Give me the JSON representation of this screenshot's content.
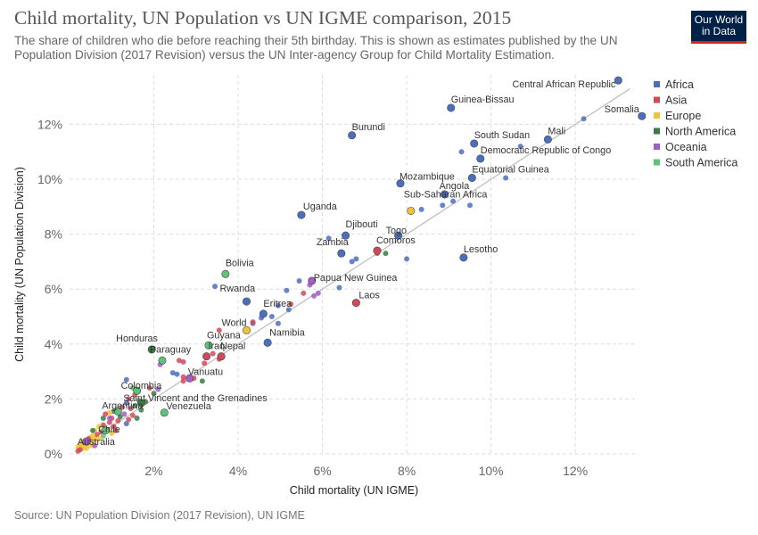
{
  "title": "Child mortality, UN Population vs UN IGME comparison, 2015",
  "subtitle": "The share of children who die before reaching their 5th birthday. This is shown as estimates published by the UN Population Division (2017 Revision) versus the UN Inter-agency Group for Child Mortality Estimation.",
  "logo": {
    "line1": "Our World",
    "line2": "in Data",
    "bg_color": "#002147",
    "accent_color": "#ce261e"
  },
  "source": "Source: UN Population Division (2017 Revision), UN IGME",
  "chart_data": {
    "type": "scatter",
    "xlabel": "Child mortality (UN IGME)",
    "ylabel": "Child mortality (UN Population Division)",
    "xlim": [
      0,
      13.5
    ],
    "ylim": [
      0,
      13.8
    ],
    "x_ticks": [
      2,
      4,
      6,
      8,
      10,
      12
    ],
    "y_ticks": [
      0,
      2,
      4,
      6,
      8,
      10,
      12
    ],
    "tick_format": "percent",
    "grid": true,
    "reference_line": "y = x",
    "legend_position": "right",
    "legend": [
      {
        "name": "Africa",
        "color": "#4c6ebf"
      },
      {
        "name": "Asia",
        "color": "#d04a5b"
      },
      {
        "name": "Europe",
        "color": "#f0c33b"
      },
      {
        "name": "North America",
        "color": "#3c7a45"
      },
      {
        "name": "Oceania",
        "color": "#a05ec8"
      },
      {
        "name": "South America",
        "color": "#5fc27a"
      }
    ],
    "labeled_points": [
      {
        "name": "Central African Republic",
        "x": 13.02,
        "y": 13.6,
        "region": "Africa"
      },
      {
        "name": "Guinea-Bissau",
        "x": 9.05,
        "y": 12.6,
        "region": "Africa"
      },
      {
        "name": "Somalia",
        "x": 13.58,
        "y": 12.3,
        "region": "Africa"
      },
      {
        "name": "Burundi",
        "x": 6.7,
        "y": 11.6,
        "region": "Africa"
      },
      {
        "name": "South Sudan",
        "x": 9.6,
        "y": 11.3,
        "region": "Africa"
      },
      {
        "name": "Mali",
        "x": 11.35,
        "y": 11.45,
        "region": "Africa"
      },
      {
        "name": "Democratic Republic of Congo",
        "x": 9.75,
        "y": 10.75,
        "region": "Africa"
      },
      {
        "name": "Equatorial Guinea",
        "x": 9.55,
        "y": 10.05,
        "region": "Africa"
      },
      {
        "name": "Mozambique",
        "x": 7.85,
        "y": 9.85,
        "region": "Africa"
      },
      {
        "name": "Angola",
        "x": 8.9,
        "y": 9.45,
        "region": "Africa"
      },
      {
        "name": "Sub-Saharan Africa",
        "x": 8.1,
        "y": 8.85,
        "region": "Europe"
      },
      {
        "name": "Uganda",
        "x": 5.5,
        "y": 8.7,
        "region": "Africa"
      },
      {
        "name": "Djibouti",
        "x": 6.55,
        "y": 7.95,
        "region": "Africa"
      },
      {
        "name": "Togo",
        "x": 7.8,
        "y": 7.95,
        "region": "Africa"
      },
      {
        "name": "Zambia",
        "x": 6.45,
        "y": 7.3,
        "region": "Africa"
      },
      {
        "name": "Comoros",
        "x": 7.3,
        "y": 7.4,
        "region": "Asia"
      },
      {
        "name": "Lesotho",
        "x": 9.35,
        "y": 7.15,
        "region": "Africa"
      },
      {
        "name": "Bolivia",
        "x": 3.7,
        "y": 6.55,
        "region": "South America"
      },
      {
        "name": "Papua New Guinea",
        "x": 5.75,
        "y": 6.3,
        "region": "Oceania"
      },
      {
        "name": "Rwanda",
        "x": 4.2,
        "y": 5.55,
        "region": "Africa"
      },
      {
        "name": "Laos",
        "x": 6.8,
        "y": 5.5,
        "region": "Asia"
      },
      {
        "name": "Eritrea",
        "x": 4.6,
        "y": 5.1,
        "region": "Africa"
      },
      {
        "name": "World",
        "x": 4.2,
        "y": 4.5,
        "region": "Europe"
      },
      {
        "name": "Namibia",
        "x": 4.7,
        "y": 4.05,
        "region": "Africa"
      },
      {
        "name": "Guyana",
        "x": 3.3,
        "y": 3.95,
        "region": "South America"
      },
      {
        "name": "Honduras",
        "x": 1.95,
        "y": 3.8,
        "region": "North America"
      },
      {
        "name": "Iraq",
        "x": 3.25,
        "y": 3.55,
        "region": "Asia"
      },
      {
        "name": "Nepal",
        "x": 3.6,
        "y": 3.55,
        "region": "Asia"
      },
      {
        "name": "Paraguay",
        "x": 2.2,
        "y": 3.4,
        "region": "South America"
      },
      {
        "name": "Vanuatu",
        "x": 2.85,
        "y": 2.75,
        "region": "Oceania"
      },
      {
        "name": "Colombia",
        "x": 1.6,
        "y": 2.3,
        "region": "South America"
      },
      {
        "name": "Saint Vincent and the Grenadines",
        "x": 1.7,
        "y": 1.85,
        "region": "North America"
      },
      {
        "name": "Argentina",
        "x": 1.15,
        "y": 1.55,
        "region": "South America"
      },
      {
        "name": "Venezuela",
        "x": 2.25,
        "y": 1.5,
        "region": "South America"
      },
      {
        "name": "Chile",
        "x": 0.85,
        "y": 0.85,
        "region": "South America"
      },
      {
        "name": "Australia",
        "x": 0.4,
        "y": 0.45,
        "region": "Oceania"
      }
    ],
    "other_points": [
      {
        "x": 12.2,
        "y": 12.2,
        "region": "Africa"
      },
      {
        "x": 10.7,
        "y": 11.2,
        "region": "Africa"
      },
      {
        "x": 9.3,
        "y": 11.0,
        "region": "Africa"
      },
      {
        "x": 10.35,
        "y": 10.05,
        "region": "Africa"
      },
      {
        "x": 9.1,
        "y": 9.2,
        "region": "Africa"
      },
      {
        "x": 8.85,
        "y": 9.05,
        "region": "Africa"
      },
      {
        "x": 9.5,
        "y": 9.05,
        "region": "Africa"
      },
      {
        "x": 8.35,
        "y": 8.9,
        "region": "Africa"
      },
      {
        "x": 6.15,
        "y": 7.85,
        "region": "Africa"
      },
      {
        "x": 6.7,
        "y": 7.0,
        "region": "Africa"
      },
      {
        "x": 6.8,
        "y": 7.1,
        "region": "Africa"
      },
      {
        "x": 8.0,
        "y": 7.1,
        "region": "Africa"
      },
      {
        "x": 7.5,
        "y": 7.3,
        "region": "North America"
      },
      {
        "x": 7.3,
        "y": 7.3,
        "region": "Asia"
      },
      {
        "x": 3.45,
        "y": 6.1,
        "region": "Africa"
      },
      {
        "x": 5.45,
        "y": 6.3,
        "region": "Africa"
      },
      {
        "x": 6.4,
        "y": 6.05,
        "region": "Africa"
      },
      {
        "x": 5.7,
        "y": 6.15,
        "region": "Oceania"
      },
      {
        "x": 5.15,
        "y": 5.95,
        "region": "Africa"
      },
      {
        "x": 5.55,
        "y": 5.85,
        "region": "Asia"
      },
      {
        "x": 5.8,
        "y": 5.75,
        "region": "Oceania"
      },
      {
        "x": 5.9,
        "y": 5.85,
        "region": "Oceania"
      },
      {
        "x": 5.25,
        "y": 5.45,
        "region": "Asia"
      },
      {
        "x": 4.95,
        "y": 5.4,
        "region": "Africa"
      },
      {
        "x": 5.2,
        "y": 5.25,
        "region": "Africa"
      },
      {
        "x": 4.8,
        "y": 5.0,
        "region": "Africa"
      },
      {
        "x": 4.55,
        "y": 4.95,
        "region": "Africa"
      },
      {
        "x": 4.35,
        "y": 4.75,
        "region": "Africa"
      },
      {
        "x": 4.95,
        "y": 4.75,
        "region": "Africa"
      },
      {
        "x": 3.55,
        "y": 4.5,
        "region": "Asia"
      },
      {
        "x": 4.35,
        "y": 4.8,
        "region": "Asia"
      },
      {
        "x": 3.4,
        "y": 3.65,
        "region": "Asia"
      },
      {
        "x": 3.55,
        "y": 3.45,
        "region": "Asia"
      },
      {
        "x": 2.6,
        "y": 3.4,
        "region": "Asia"
      },
      {
        "x": 2.7,
        "y": 3.35,
        "region": "Asia"
      },
      {
        "x": 3.2,
        "y": 3.3,
        "region": "Asia"
      },
      {
        "x": 2.15,
        "y": 3.25,
        "region": "Oceania"
      },
      {
        "x": 2.55,
        "y": 2.9,
        "region": "Africa"
      },
      {
        "x": 2.45,
        "y": 2.95,
        "region": "Africa"
      },
      {
        "x": 2.7,
        "y": 2.8,
        "region": "Asia"
      },
      {
        "x": 2.95,
        "y": 2.75,
        "region": "Asia"
      },
      {
        "x": 3.15,
        "y": 2.65,
        "region": "North America"
      },
      {
        "x": 2.7,
        "y": 2.65,
        "region": "Asia"
      },
      {
        "x": 1.35,
        "y": 2.7,
        "region": "Africa"
      },
      {
        "x": 1.5,
        "y": 2.4,
        "region": "South America"
      },
      {
        "x": 1.9,
        "y": 2.4,
        "region": "Asia"
      },
      {
        "x": 2.1,
        "y": 2.35,
        "region": "Oceania"
      },
      {
        "x": 2.0,
        "y": 2.2,
        "region": "North America"
      },
      {
        "x": 1.55,
        "y": 2.15,
        "region": "Asia"
      },
      {
        "x": 1.4,
        "y": 2.0,
        "region": "Asia"
      },
      {
        "x": 1.65,
        "y": 1.95,
        "region": "South America"
      },
      {
        "x": 1.8,
        "y": 1.9,
        "region": "North America"
      },
      {
        "x": 1.35,
        "y": 1.85,
        "region": "Africa"
      },
      {
        "x": 1.55,
        "y": 1.75,
        "region": "North America"
      },
      {
        "x": 1.45,
        "y": 1.65,
        "region": "Asia"
      },
      {
        "x": 1.7,
        "y": 1.6,
        "region": "North America"
      },
      {
        "x": 1.25,
        "y": 1.7,
        "region": "Asia"
      },
      {
        "x": 1.05,
        "y": 1.55,
        "region": "North America"
      },
      {
        "x": 1.3,
        "y": 1.45,
        "region": "Oceania"
      },
      {
        "x": 1.5,
        "y": 1.4,
        "region": "Asia"
      },
      {
        "x": 1.2,
        "y": 1.35,
        "region": "North America"
      },
      {
        "x": 1.0,
        "y": 1.3,
        "region": "Asia"
      },
      {
        "x": 0.8,
        "y": 1.3,
        "region": "North America"
      },
      {
        "x": 1.4,
        "y": 1.25,
        "region": "Asia"
      },
      {
        "x": 1.15,
        "y": 1.2,
        "region": "Asia"
      },
      {
        "x": 1.6,
        "y": 1.3,
        "region": "North America"
      },
      {
        "x": 0.95,
        "y": 1.15,
        "region": "Asia"
      },
      {
        "x": 1.35,
        "y": 1.1,
        "region": "Africa"
      },
      {
        "x": 0.8,
        "y": 1.05,
        "region": "Asia"
      },
      {
        "x": 0.95,
        "y": 1.5,
        "region": "Europe"
      },
      {
        "x": 0.85,
        "y": 1.45,
        "region": "Asia"
      },
      {
        "x": 1.05,
        "y": 1.0,
        "region": "Asia"
      },
      {
        "x": 0.7,
        "y": 1.0,
        "region": "Europe"
      },
      {
        "x": 0.9,
        "y": 0.9,
        "region": "Europe"
      },
      {
        "x": 1.1,
        "y": 0.85,
        "region": "Asia"
      },
      {
        "x": 0.75,
        "y": 0.8,
        "region": "Asia"
      },
      {
        "x": 0.6,
        "y": 0.85,
        "region": "Europe"
      },
      {
        "x": 1.0,
        "y": 0.75,
        "region": "Europe"
      },
      {
        "x": 0.65,
        "y": 0.7,
        "region": "Asia"
      },
      {
        "x": 0.55,
        "y": 0.65,
        "region": "Europe"
      },
      {
        "x": 0.5,
        "y": 0.6,
        "region": "Europe"
      },
      {
        "x": 0.45,
        "y": 0.55,
        "region": "Asia"
      },
      {
        "x": 0.6,
        "y": 0.5,
        "region": "Europe"
      },
      {
        "x": 0.4,
        "y": 0.45,
        "region": "Europe"
      },
      {
        "x": 0.35,
        "y": 0.4,
        "region": "Europe"
      },
      {
        "x": 0.5,
        "y": 0.4,
        "region": "Europe"
      },
      {
        "x": 0.3,
        "y": 0.35,
        "region": "Europe"
      },
      {
        "x": 0.25,
        "y": 0.3,
        "region": "Europe"
      },
      {
        "x": 0.45,
        "y": 0.3,
        "region": "Europe"
      },
      {
        "x": 0.35,
        "y": 0.25,
        "region": "Europe"
      },
      {
        "x": 0.2,
        "y": 0.25,
        "region": "Europe"
      },
      {
        "x": 0.3,
        "y": 0.2,
        "region": "Europe"
      },
      {
        "x": 0.55,
        "y": 0.3,
        "region": "Europe"
      },
      {
        "x": 0.25,
        "y": 0.15,
        "region": "Asia"
      },
      {
        "x": 0.2,
        "y": 0.1,
        "region": "Asia"
      },
      {
        "x": 0.4,
        "y": 0.2,
        "region": "Europe"
      },
      {
        "x": 0.3,
        "y": 0.45,
        "region": "Europe"
      },
      {
        "x": 0.6,
        "y": 0.3,
        "region": "Oceania"
      },
      {
        "x": 0.7,
        "y": 0.55,
        "region": "Europe"
      },
      {
        "x": 0.8,
        "y": 0.65,
        "region": "South America"
      },
      {
        "x": 0.55,
        "y": 0.85,
        "region": "North America"
      },
      {
        "x": 0.95,
        "y": 1.3,
        "region": "Oceania"
      }
    ]
  }
}
